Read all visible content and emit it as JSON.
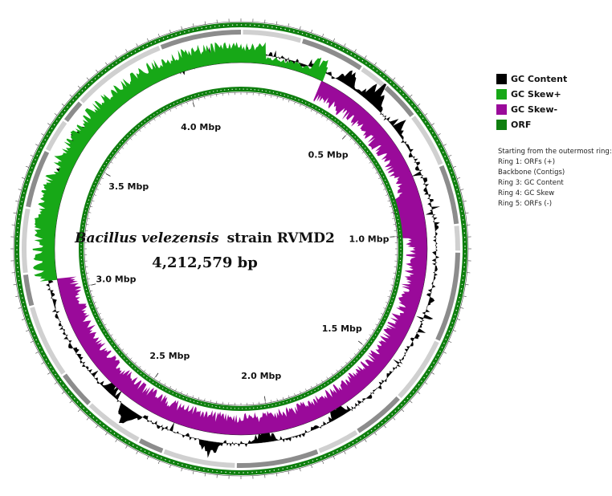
{
  "title": {
    "species": "Bacillus velezensis",
    "strain": "strain RVMD2",
    "size": "4,212,579 bp"
  },
  "genome_length_bp": 4212579,
  "ticks": [
    {
      "label": "0.5 Mbp",
      "position_mbp": 0.5
    },
    {
      "label": "1.0 Mbp",
      "position_mbp": 1.0
    },
    {
      "label": "1.5 Mbp",
      "position_mbp": 1.5
    },
    {
      "label": "2.0 Mbp",
      "position_mbp": 2.0
    },
    {
      "label": "2.5 Mbp",
      "position_mbp": 2.5
    },
    {
      "label": "3.0 Mbp",
      "position_mbp": 3.0
    },
    {
      "label": "3.5 Mbp",
      "position_mbp": 3.5
    },
    {
      "label": "4.0 Mbp",
      "position_mbp": 4.0
    }
  ],
  "legend": [
    {
      "label": "GC Content",
      "color": "#000000"
    },
    {
      "label": "GC Skew+",
      "color": "#17a817"
    },
    {
      "label": "GC Skew-",
      "color": "#9a0a9a"
    },
    {
      "label": "ORF",
      "color": "#0f7f0f"
    }
  ],
  "ring_notes": {
    "heading": "Starting from the outermost ring:",
    "rings": [
      "Ring 1: ORFs (+)",
      "Backbone (Contigs)",
      "Ring 3: GC Content",
      "Ring 4: GC Skew",
      "Ring 5: ORFs (-)"
    ]
  },
  "colors": {
    "orf": "#0f7f0f",
    "gc_content": "#000000",
    "skew_pos": "#17a817",
    "skew_neg": "#9a0a9a",
    "contig_light": "#d0d0d0",
    "contig_dark": "#8c8c8c"
  },
  "gc_skew_profile": {
    "negative_between_mbp": [
      0.3,
      3.05
    ],
    "positive_between_mbp": [
      3.05,
      0.3
    ]
  }
}
